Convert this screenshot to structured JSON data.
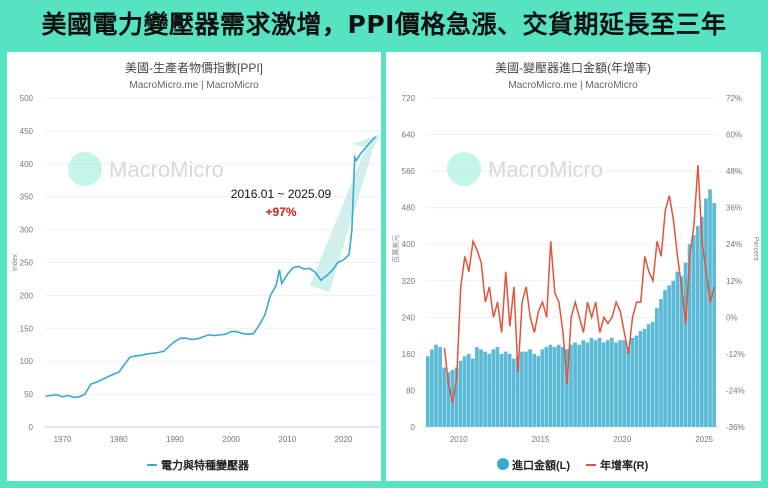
{
  "headline": "美國電力變壓器需求激增，PPI價格急漲、交貨期延長至三年",
  "colors": {
    "background": "#55e3c2",
    "ppi_line": "#3aa8d4",
    "import_bar": "#5bbbd6",
    "growth_line": "#e4533a",
    "annotation": "#e01818",
    "arrow": "#bfe9e2"
  },
  "watermark": "MacroMicro",
  "chart_data": [
    {
      "type": "line",
      "title": "美國-生產者物價指數[PPI]",
      "subtitle": "MacroMicro.me | MacroMicro",
      "ylabel": "Index",
      "ylim": [
        0,
        500
      ],
      "yticks": [
        "0",
        "50",
        "100",
        "150",
        "200",
        "250",
        "300",
        "350",
        "400",
        "450",
        "500"
      ],
      "xlim": [
        1966.7,
        2026.5
      ],
      "xticks": [
        "1970",
        "1980",
        "1990",
        "2000",
        "2010",
        "2020"
      ],
      "grid": true,
      "legend_position": "bottom",
      "annotation": {
        "period": "2016.01 ~ 2025.09",
        "change": "+97%"
      },
      "series": [
        {
          "name": "電力與特種變壓器",
          "points": [
            [
              1967,
              47
            ],
            [
              1969,
              49
            ],
            [
              1970,
              46
            ],
            [
              1971,
              48
            ],
            [
              1972,
              45
            ],
            [
              1973,
              46
            ],
            [
              1974,
              50
            ],
            [
              1975,
              65
            ],
            [
              1976,
              68
            ],
            [
              1977,
              72
            ],
            [
              1978,
              76
            ],
            [
              1979,
              80
            ],
            [
              1980,
              83
            ],
            [
              1981,
              95
            ],
            [
              1982,
              106
            ],
            [
              1983,
              108
            ],
            [
              1984,
              109
            ],
            [
              1985,
              111
            ],
            [
              1986,
              112
            ],
            [
              1987,
              113
            ],
            [
              1988,
              115
            ],
            [
              1989,
              123
            ],
            [
              1990,
              130
            ],
            [
              1991,
              135
            ],
            [
              1992,
              135
            ],
            [
              1993,
              133
            ],
            [
              1994,
              134
            ],
            [
              1995,
              137
            ],
            [
              1996,
              140
            ],
            [
              1997,
              139
            ],
            [
              1998,
              140
            ],
            [
              1999,
              141
            ],
            [
              2000,
              145
            ],
            [
              2001,
              145
            ],
            [
              2002,
              142
            ],
            [
              2003,
              141
            ],
            [
              2004,
              142
            ],
            [
              2005,
              155
            ],
            [
              2006,
              170
            ],
            [
              2007,
              200
            ],
            [
              2008,
              215
            ],
            [
              2008.6,
              239
            ],
            [
              2009,
              218
            ],
            [
              2010,
              232
            ],
            [
              2011,
              242
            ],
            [
              2012,
              244
            ],
            [
              2013,
              240
            ],
            [
              2014,
              241
            ],
            [
              2015,
              235
            ],
            [
              2016,
              223
            ],
            [
              2017,
              230
            ],
            [
              2018,
              238
            ],
            [
              2019,
              250
            ],
            [
              2020,
              254
            ],
            [
              2021,
              262
            ],
            [
              2021.5,
              300
            ],
            [
              2022,
              410
            ],
            [
              2022.3,
              405
            ],
            [
              2023,
              415
            ],
            [
              2024,
              425
            ],
            [
              2025,
              435
            ],
            [
              2025.75,
              441
            ]
          ]
        }
      ]
    },
    {
      "type": "bar+line",
      "title": "美國-變壓器進口金額(年增率)",
      "subtitle": "MacroMicro.me | MacroMicro",
      "ylabel_left": "百萬美元",
      "ylabel_right": "Percent",
      "ylim_left": [
        0,
        720
      ],
      "ylim_right": [
        -36,
        72
      ],
      "yticks_left": [
        "0",
        "80",
        "160",
        "240",
        "320",
        "400",
        "480",
        "560",
        "640",
        "720"
      ],
      "yticks_right": [
        "-36%",
        "-24%",
        "-12%",
        "0%",
        "12%",
        "24%",
        "36%",
        "48%",
        "60%",
        "72%"
      ],
      "xlim": [
        2008,
        2025.85
      ],
      "xticks": [
        "2010",
        "2015",
        "2020",
        "2025"
      ],
      "grid": true,
      "legend_position": "bottom",
      "x_start": 2008,
      "x_step": 0.25,
      "series": [
        {
          "name": "進口金額(L)",
          "type": "bar",
          "axis": "left",
          "values": [
            155,
            170,
            180,
            175,
            130,
            120,
            125,
            130,
            145,
            155,
            160,
            150,
            175,
            170,
            165,
            160,
            170,
            175,
            160,
            165,
            160,
            150,
            155,
            165,
            165,
            170,
            160,
            155,
            170,
            175,
            180,
            175,
            180,
            175,
            170,
            180,
            185,
            180,
            190,
            185,
            195,
            190,
            195,
            185,
            190,
            195,
            185,
            190,
            190,
            175,
            195,
            200,
            210,
            215,
            225,
            230,
            260,
            280,
            300,
            310,
            320,
            340,
            330,
            360,
            400,
            420,
            440,
            460,
            500,
            520,
            490
          ]
        },
        {
          "name": "年增率(R)",
          "type": "line",
          "axis": "right",
          "values": [
            null,
            null,
            null,
            null,
            -10,
            -22,
            -28,
            -20,
            10,
            20,
            15,
            25,
            22,
            18,
            5,
            10,
            0,
            5,
            -5,
            15,
            -3,
            10,
            -18,
            5,
            10,
            0,
            -5,
            2,
            5,
            0,
            25,
            8,
            5,
            -5,
            -22,
            0,
            5,
            0,
            -5,
            5,
            0,
            5,
            -5,
            0,
            -2,
            0,
            5,
            2,
            -5,
            -12,
            0,
            5,
            5,
            20,
            15,
            12,
            25,
            20,
            35,
            40,
            32,
            20,
            10,
            -2,
            20,
            30,
            50,
            25,
            15,
            5,
            10
          ]
        }
      ]
    }
  ]
}
